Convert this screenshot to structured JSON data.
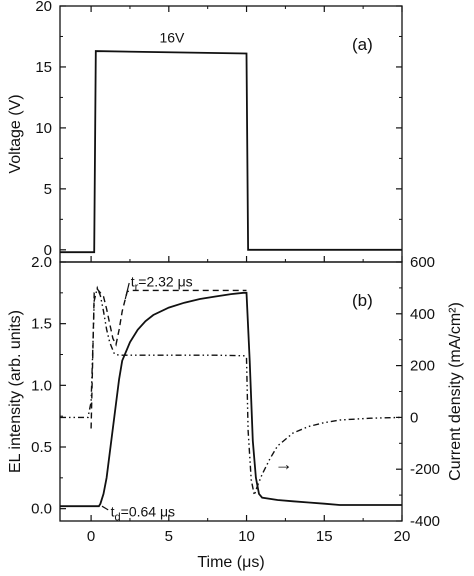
{
  "chart_data": [
    {
      "panel": "(a)",
      "type": "line",
      "title": "",
      "xlabel": "",
      "ylabel": "Voltage (V)",
      "xlim": [
        -2,
        20
      ],
      "ylim": [
        -1,
        20
      ],
      "yticks": [
        0,
        5,
        10,
        15,
        20
      ],
      "x_tick_labels_shown": false,
      "series": [
        {
          "style": "solid",
          "color": "#111111",
          "x": [
            -2,
            0.2,
            0.3,
            10.0,
            10.1,
            20
          ],
          "y": [
            -0.2,
            -0.2,
            16.3,
            16.1,
            0.0,
            0.0
          ]
        }
      ],
      "annotations": [
        {
          "text": "16V",
          "x": 5.2,
          "y": 17.5
        }
      ],
      "grid": false,
      "colors": {
        "line": "#111111",
        "axes": "#111111",
        "background": "#ffffff"
      }
    },
    {
      "panel": "(b)",
      "type": "line",
      "title": "",
      "xlabel": "Time (μs)",
      "ylabel": "EL intensity (arb. units)",
      "y2label": "Current density (mA/cm²)",
      "xlim": [
        -2,
        20
      ],
      "ylim": [
        -0.1,
        2.0
      ],
      "y2lim": [
        -400,
        600
      ],
      "xticks": [
        0,
        5,
        10,
        15,
        20
      ],
      "yticks": [
        0.0,
        0.5,
        1.0,
        1.5,
        2.0
      ],
      "y2ticks": [
        -400,
        -200,
        0,
        200,
        400,
        600
      ],
      "series": [
        {
          "style": "solid",
          "axis": "left",
          "x": [
            -2,
            0.5,
            0.6,
            0.8,
            1.0,
            1.2,
            1.5,
            1.8,
            2.0,
            2.5,
            3.0,
            3.5,
            4.0,
            5.0,
            6.0,
            7.0,
            8.0,
            9.0,
            9.8,
            10.0,
            10.2,
            10.4,
            10.6,
            10.8,
            11.0,
            12.0,
            13.0,
            14.0,
            15.0,
            16.0,
            17.0,
            20.0
          ],
          "y": [
            0.02,
            0.02,
            0.04,
            0.12,
            0.25,
            0.45,
            0.75,
            1.05,
            1.2,
            1.35,
            1.45,
            1.52,
            1.57,
            1.63,
            1.67,
            1.7,
            1.72,
            1.74,
            1.75,
            1.75,
            1.2,
            0.55,
            0.25,
            0.12,
            0.09,
            0.07,
            0.06,
            0.05,
            0.04,
            0.03,
            0.03,
            0.03
          ]
        },
        {
          "style": "dashed",
          "axis": "left",
          "x": [
            0.0,
            0.2,
            0.4,
            0.6,
            0.8,
            1.0,
            1.2,
            1.4,
            1.6,
            1.8,
            2.0,
            2.2,
            2.32,
            2.6,
            3.0,
            5.0,
            8.0,
            10.0
          ],
          "y": [
            0.65,
            1.75,
            1.78,
            1.75,
            1.72,
            1.62,
            1.5,
            1.38,
            1.33,
            1.45,
            1.6,
            1.7,
            1.76,
            1.77,
            1.77,
            1.77,
            1.77,
            1.77
          ]
        },
        {
          "style": "dash-dot-dot",
          "axis": "right",
          "x": [
            -2,
            -0.2,
            0.0,
            0.1,
            0.2,
            0.4,
            0.6,
            0.8,
            1.0,
            1.2,
            1.5,
            1.8,
            2.0,
            2.4,
            3.0,
            5.0,
            8.0,
            9.9,
            10.0,
            10.1,
            10.3,
            10.5,
            10.7,
            11.0,
            11.5,
            12.0,
            13.0,
            14.0,
            15.0,
            16.0,
            18.0,
            20.0
          ],
          "y": [
            0,
            0,
            60,
            240,
            450,
            500,
            470,
            410,
            340,
            290,
            245,
            240,
            240,
            240,
            240,
            240,
            240,
            238,
            230,
            -50,
            -240,
            -300,
            -265,
            -220,
            -160,
            -110,
            -60,
            -35,
            -20,
            -10,
            -3,
            0
          ]
        }
      ],
      "annotations": [
        {
          "text_main": "t",
          "text_sub": "r",
          "text_rest": "=2.32 μs",
          "x": 2.55,
          "y": 1.84
        },
        {
          "text_main": "t",
          "text_sub": "d",
          "text_rest": "=0.64 μs",
          "x": 1.0,
          "y": 0.0
        },
        {
          "text": "→",
          "x": 12.4,
          "y2": -180
        }
      ],
      "grid": false,
      "colors": {
        "line": "#111111",
        "axes": "#111111",
        "background": "#ffffff"
      }
    }
  ]
}
